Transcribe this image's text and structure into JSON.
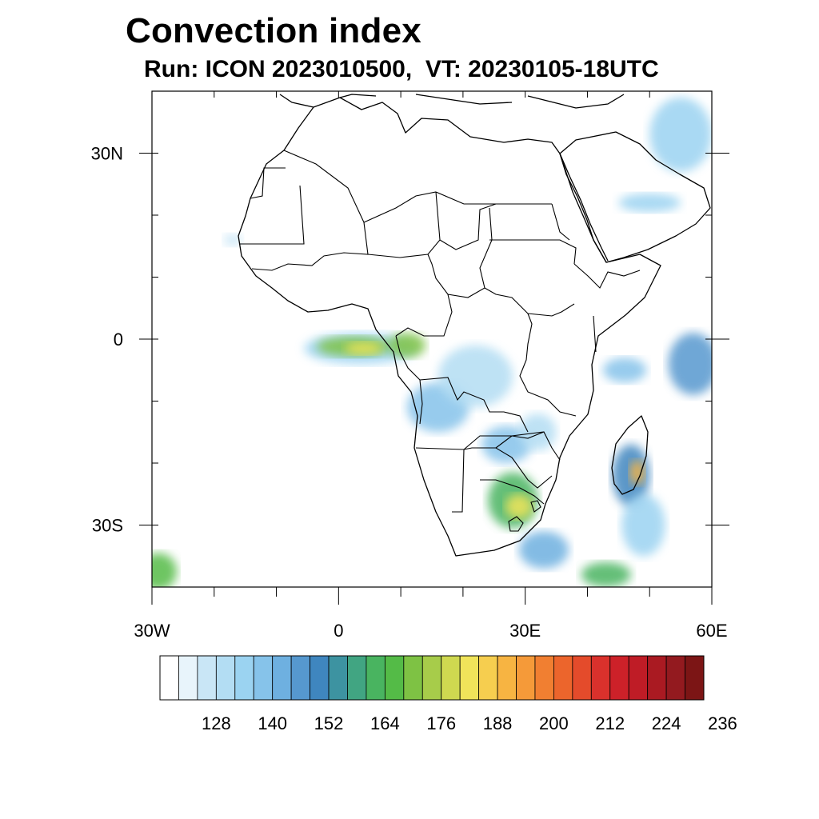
{
  "title": "Convection index",
  "subtitle": "Run: ICON 2023010500,  VT: 20230105-18UTC",
  "map": {
    "projection": "cylindrical-equidistant",
    "lon_range": [
      -30,
      60
    ],
    "lat_range": [
      -40,
      40
    ],
    "x_tick_labels": [
      {
        "lon": -30,
        "text": "30W"
      },
      {
        "lon": 0,
        "text": "0"
      },
      {
        "lon": 30,
        "text": "30E"
      },
      {
        "lon": 60,
        "text": "60E"
      }
    ],
    "y_tick_labels": [
      {
        "lat": 30,
        "text": "30N"
      },
      {
        "lat": 0,
        "text": "0"
      },
      {
        "lat": -30,
        "text": "30S"
      }
    ],
    "minor_ticks_lon": [
      -30,
      -20,
      -10,
      0,
      10,
      20,
      30,
      40,
      50,
      60
    ],
    "minor_ticks_lat": [
      30,
      20,
      10,
      0,
      -10,
      -20,
      -30
    ]
  },
  "colorbar": {
    "colors": [
      "#ffffff",
      "#e8f4fb",
      "#c9e6f6",
      "#b3ddf3",
      "#9bd3f1",
      "#86c3ea",
      "#6eb0e0",
      "#5698cf",
      "#3f86bf",
      "#3d93a1",
      "#41a582",
      "#49b460",
      "#54bb47",
      "#7ec244",
      "#a7cc4a",
      "#cfd850",
      "#f0e45a",
      "#f6ce4f",
      "#f7b442",
      "#f59a39",
      "#f17f31",
      "#ec652c",
      "#e44b2b",
      "#da312c",
      "#cd2129",
      "#bf1c26",
      "#aa1a22",
      "#931a1f",
      "#7c1515"
    ],
    "tick_labels": [
      "128",
      "140",
      "152",
      "164",
      "176",
      "188",
      "200",
      "212",
      "224",
      "236"
    ]
  },
  "convection_patches": [
    {
      "name": "gulf-of-guinea",
      "lon": 3.5,
      "lat": -1.5,
      "rx": 9,
      "ry": 2.5,
      "level": 4
    },
    {
      "name": "gulf-of-guinea-core",
      "lon": 2.5,
      "lat": -1.2,
      "rx": 6,
      "ry": 1.6,
      "level": 13
    },
    {
      "name": "gulf-of-guinea-hot",
      "lon": 4,
      "lat": -1.5,
      "rx": 3,
      "ry": 1,
      "level": 16
    },
    {
      "name": "gabon",
      "lon": 11,
      "lat": -1,
      "rx": 3,
      "ry": 2,
      "level": 13
    },
    {
      "name": "drc-west",
      "lon": 16,
      "lat": -11,
      "rx": 5,
      "ry": 4,
      "level": 5
    },
    {
      "name": "drc-central",
      "lon": 22,
      "lat": -6,
      "rx": 6,
      "ry": 5,
      "level": 3
    },
    {
      "name": "zambia",
      "lon": 27,
      "lat": -17,
      "rx": 4,
      "ry": 3,
      "level": 5
    },
    {
      "name": "mozambique-channel",
      "lon": 32,
      "lat": -15,
      "rx": 3,
      "ry": 3,
      "level": 3
    },
    {
      "name": "south-africa",
      "lon": 28,
      "lat": -26,
      "rx": 4,
      "ry": 4.5,
      "level": 11
    },
    {
      "name": "south-africa-core",
      "lon": 29,
      "lat": -27,
      "rx": 2.2,
      "ry": 2,
      "level": 16
    },
    {
      "name": "south-africa-tail",
      "lon": 33,
      "lat": -34,
      "rx": 4,
      "ry": 3,
      "level": 6
    },
    {
      "name": "madagascar",
      "lon": 47,
      "lat": -22,
      "rx": 3,
      "ry": 5,
      "level": 8
    },
    {
      "name": "madagascar-core",
      "lon": 48,
      "lat": -21.5,
      "rx": 1.2,
      "ry": 2,
      "level": 18
    },
    {
      "name": "east-madagascar",
      "lon": 49,
      "lat": -30,
      "rx": 3.5,
      "ry": 5,
      "level": 4
    },
    {
      "name": "indian-ocean-east",
      "lon": 57,
      "lat": -4,
      "rx": 4,
      "ry": 5,
      "level": 7
    },
    {
      "name": "indian-ocean-center",
      "lon": 46,
      "lat": -5,
      "rx": 3.5,
      "ry": 2,
      "level": 5
    },
    {
      "name": "arabia",
      "lon": 50,
      "lat": 22,
      "rx": 5,
      "ry": 1.5,
      "level": 4
    },
    {
      "name": "persian-gulf",
      "lon": 55,
      "lat": 33,
      "rx": 5,
      "ry": 6,
      "level": 4
    },
    {
      "name": "sw-corner",
      "lon": -29,
      "lat": -37.5,
      "rx": 3,
      "ry": 3,
      "level": 12
    },
    {
      "name": "se-corner",
      "lon": 43,
      "lat": -38,
      "rx": 4,
      "ry": 2,
      "level": 11
    },
    {
      "name": "sahel-west",
      "lon": -17,
      "lat": 16,
      "rx": 1.5,
      "ry": 1,
      "level": 2
    }
  ]
}
